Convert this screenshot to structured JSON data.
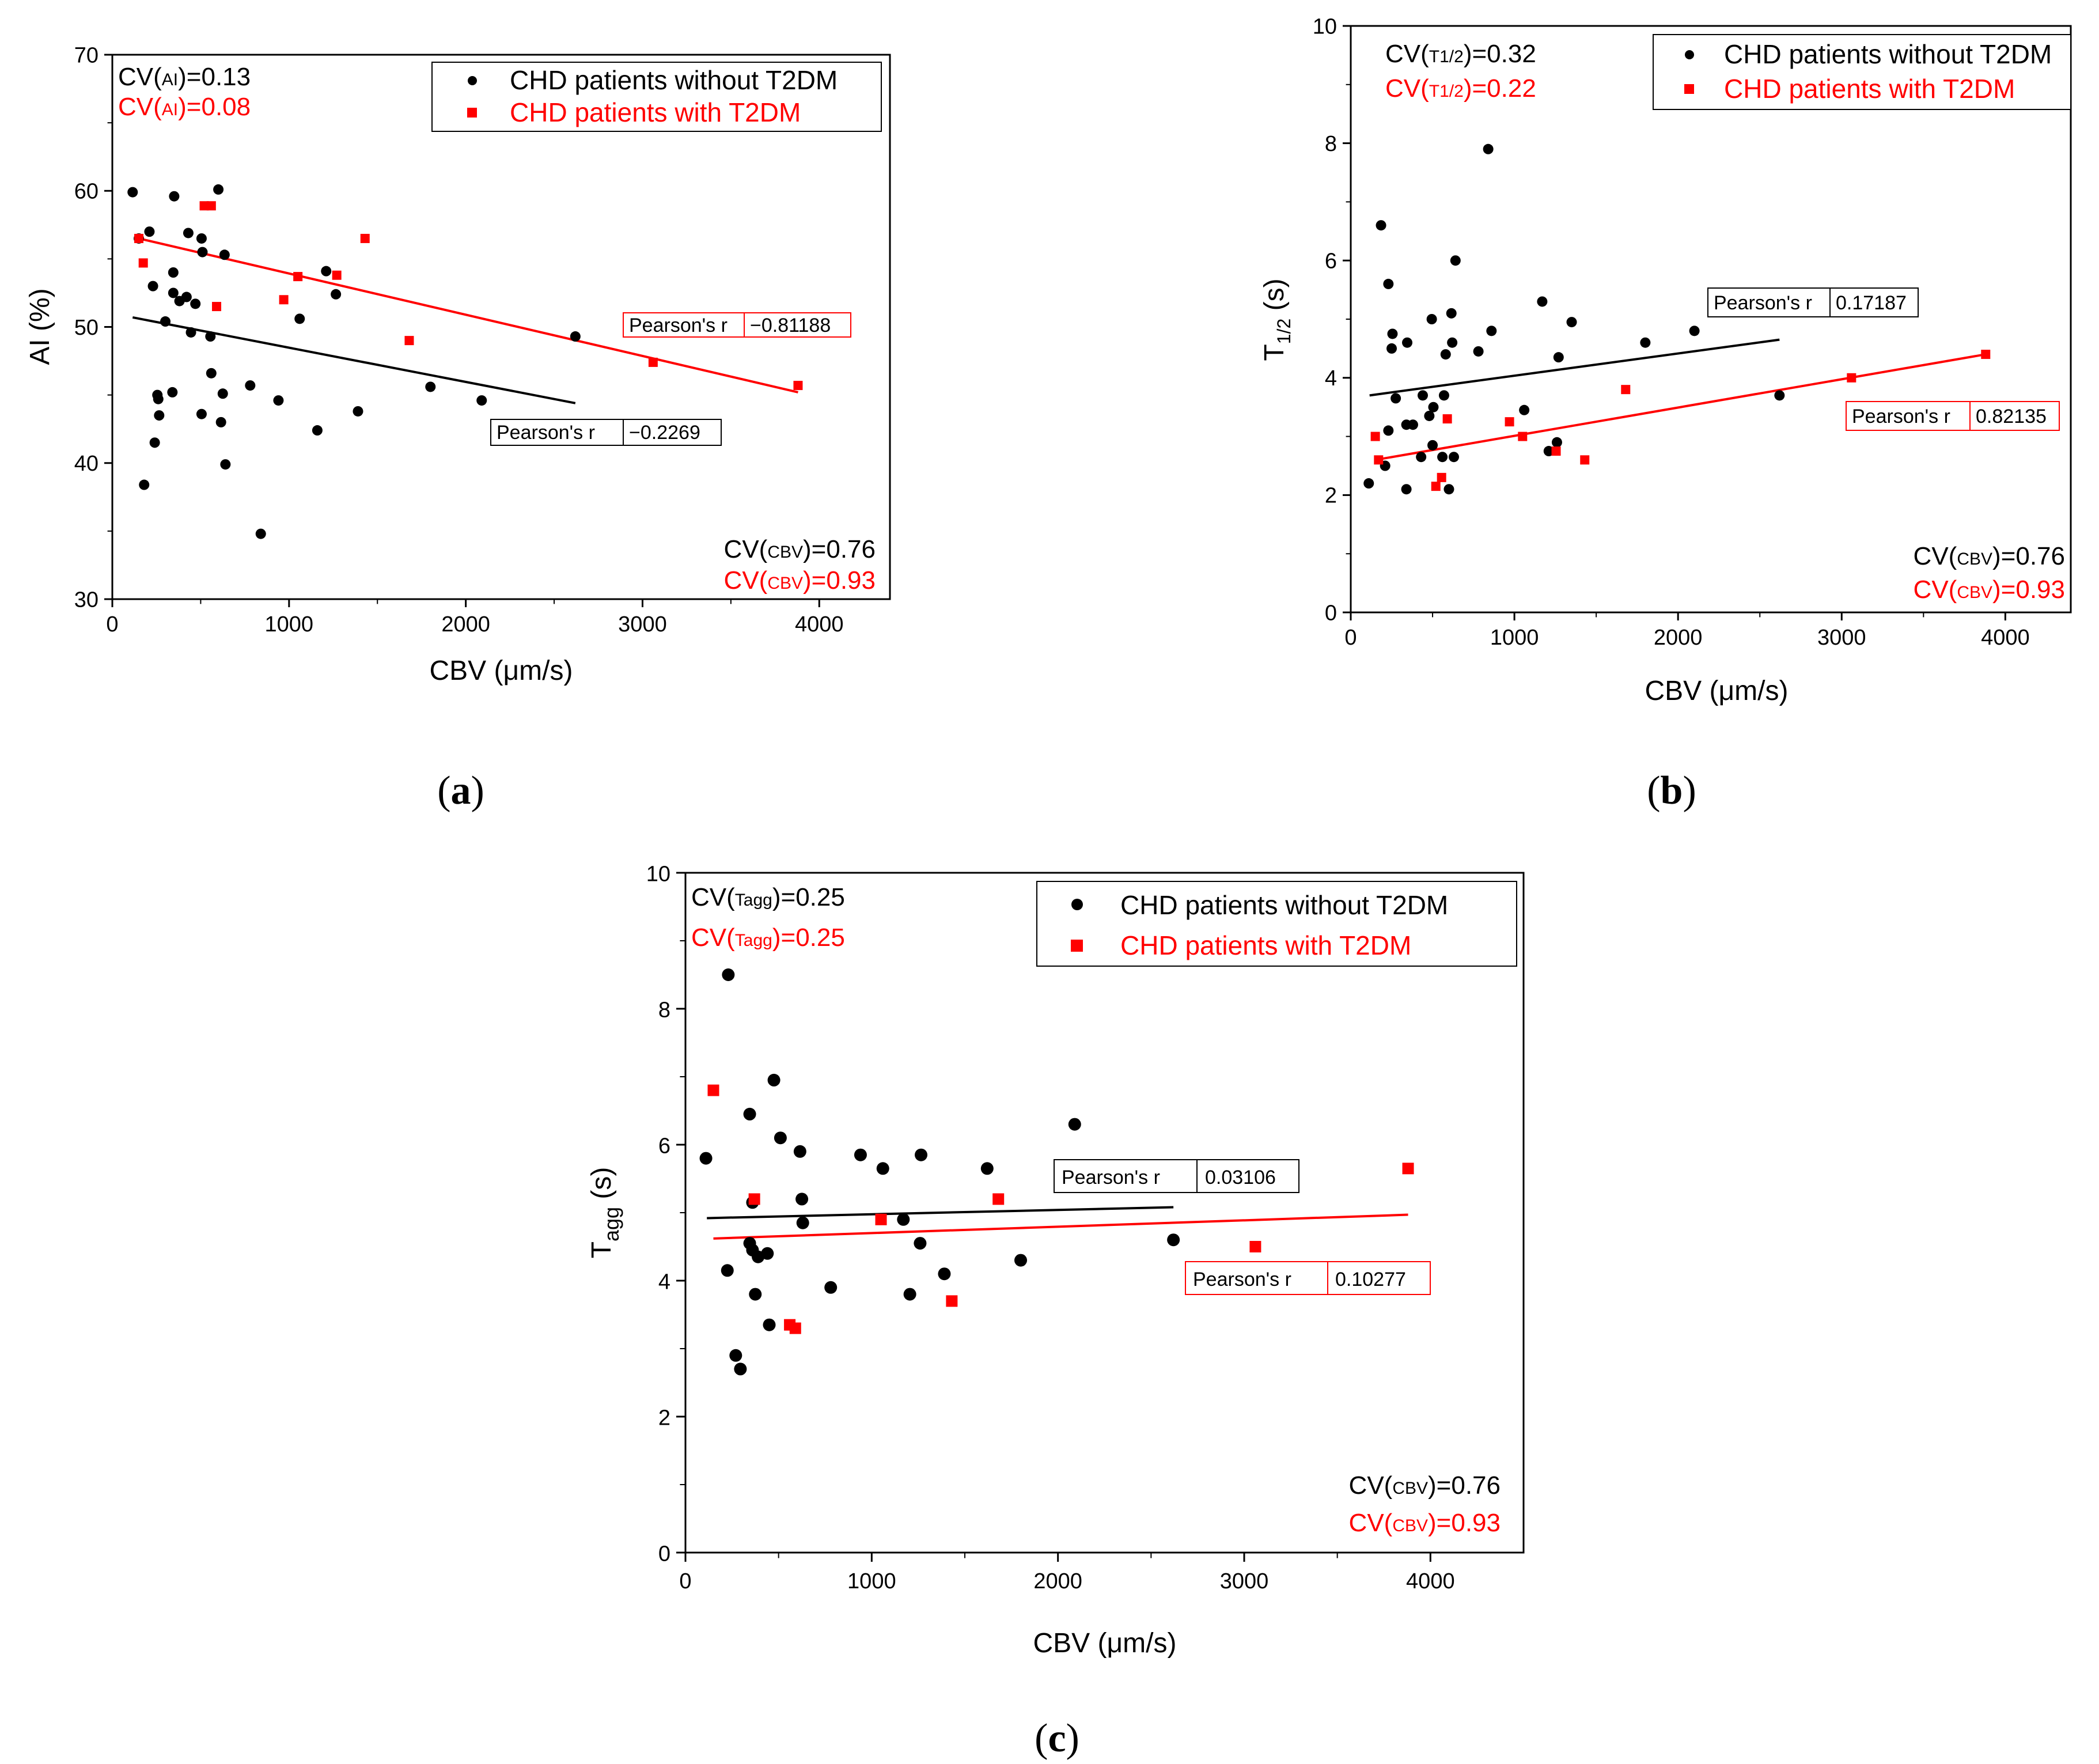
{
  "colors": {
    "black_series": "#000000",
    "red_series": "#ff0000"
  },
  "chart_data": [
    {
      "id": "a",
      "type": "scatter",
      "caption": "a",
      "xlabel": "CBV (μm/s)",
      "ylabel": "AI (%)",
      "xlim": [
        0,
        4400
      ],
      "ylim": [
        30,
        70
      ],
      "xticks": [
        0,
        1000,
        2000,
        3000,
        4000
      ],
      "yticks": [
        30,
        40,
        50,
        60,
        70
      ],
      "xtick_labels": [
        "0",
        "1000",
        "2000",
        "3000",
        "4000"
      ],
      "ytick_labels": [
        "30",
        "40",
        "50",
        "60",
        "70"
      ],
      "legend": [
        "CHD patients without T2DM",
        "CHD patients with T2DM"
      ],
      "cv_y": {
        "black": {
          "prefix": "CV(",
          "sub": "AI",
          "suffix": ")=0.13"
        },
        "red": {
          "prefix": "CV(",
          "sub": "AI",
          "suffix": ")=0.08"
        }
      },
      "cv_x": {
        "black": {
          "prefix": "CV(",
          "sub": "CBV",
          "suffix": ")=0.76"
        },
        "red": {
          "prefix": "CV(",
          "sub": "CBV",
          "suffix": ")=0.93"
        }
      },
      "series": [
        {
          "name": "CHD patients without T2DM",
          "color": "#000000",
          "marker": "circle",
          "x": [
            115,
            210,
            150,
            350,
            600,
            230,
            345,
            505,
            430,
            635,
            510,
            345,
            380,
            420,
            470,
            560,
            300,
            445,
            555,
            1060,
            1210,
            1265,
            2620,
            255,
            340,
            625,
            260,
            265,
            615,
            505,
            780,
            940,
            1160,
            1390,
            1800,
            2090,
            240,
            640,
            180,
            840
          ],
          "y": [
            59.9,
            57.0,
            56.5,
            59.6,
            60.1,
            53.0,
            54.0,
            56.5,
            56.9,
            55.3,
            55.5,
            52.5,
            51.9,
            52.2,
            51.7,
            46.6,
            50.4,
            49.6,
            49.3,
            50.6,
            54.1,
            52.4,
            49.3,
            45.0,
            45.2,
            45.1,
            44.7,
            43.5,
            43.0,
            43.6,
            45.7,
            44.6,
            42.4,
            43.8,
            45.6,
            44.6,
            41.5,
            39.9,
            38.4,
            34.8
          ]
        },
        {
          "name": "CHD patients with T2DM",
          "color": "#ff0000",
          "marker": "square",
          "x": [
            150,
            175,
            520,
            560,
            590,
            970,
            1050,
            1270,
            1430,
            1680,
            3060,
            3880
          ],
          "y": [
            56.5,
            54.7,
            58.9,
            58.9,
            51.5,
            52.0,
            53.7,
            53.8,
            56.5,
            49.0,
            47.4,
            45.7
          ]
        }
      ],
      "fits": [
        {
          "color": "#000000",
          "x": [
            115,
            2620
          ],
          "y": [
            50.7,
            44.4
          ],
          "pearson_label": "Pearson's r",
          "pearson_value": "−0.2269"
        },
        {
          "color": "#ff0000",
          "x": [
            150,
            3880
          ],
          "y": [
            56.5,
            45.2
          ],
          "pearson_label": "Pearson's r",
          "pearson_value": "−0.81188"
        }
      ]
    },
    {
      "id": "b",
      "type": "scatter",
      "caption": "b",
      "xlabel": "CBV (μm/s)",
      "ylabel": "T",
      "ylabel_sub": "1/2",
      "ylabel_suffix": " (s)",
      "xlim": [
        0,
        4400
      ],
      "ylim": [
        0,
        10
      ],
      "xticks": [
        0,
        1000,
        2000,
        3000,
        4000
      ],
      "yticks": [
        0,
        2,
        4,
        6,
        8,
        10
      ],
      "xtick_labels": [
        "0",
        "1000",
        "2000",
        "3000",
        "4000"
      ],
      "ytick_labels": [
        "0",
        "2",
        "4",
        "6",
        "8",
        "10"
      ],
      "legend": [
        "CHD patients without T2DM",
        "CHD patients with T2DM"
      ],
      "cv_y": {
        "black": {
          "prefix": "CV(",
          "sub": "T1/2",
          "suffix": ")=0.32"
        },
        "red": {
          "prefix": "CV(",
          "sub": "T1/2",
          "suffix": ")=0.22"
        }
      },
      "cv_x": {
        "black": {
          "prefix": "CV(",
          "sub": "CBV",
          "suffix": ")=0.76"
        },
        "red": {
          "prefix": "CV(",
          "sub": "CBV",
          "suffix": ")=0.93"
        }
      },
      "series": [
        {
          "name": "CHD patients without T2DM",
          "color": "#000000",
          "marker": "circle",
          "x": [
            840,
            185,
            640,
            230,
            495,
            615,
            860,
            1170,
            1350,
            255,
            345,
            250,
            620,
            580,
            780,
            1800,
            2100,
            1270,
            2620,
            275,
            440,
            505,
            570,
            380,
            340,
            1060,
            230,
            480,
            430,
            500,
            560,
            630,
            1210,
            1260,
            110,
            210,
            340,
            600
          ],
          "y": [
            7.9,
            6.6,
            6.0,
            5.6,
            5.0,
            5.1,
            4.8,
            5.3,
            4.95,
            4.75,
            4.6,
            4.5,
            4.6,
            4.4,
            4.45,
            4.6,
            4.8,
            4.35,
            3.7,
            3.65,
            3.7,
            3.5,
            3.7,
            3.2,
            3.2,
            3.45,
            3.1,
            3.35,
            2.65,
            2.85,
            2.65,
            2.65,
            2.75,
            2.9,
            2.2,
            2.5,
            2.1,
            2.1
          ]
        },
        {
          "name": "CHD patients with T2DM",
          "color": "#ff0000",
          "marker": "square",
          "x": [
            150,
            170,
            520,
            555,
            590,
            970,
            1050,
            1255,
            1430,
            1680,
            3060,
            3880
          ],
          "y": [
            3.0,
            2.6,
            2.15,
            2.3,
            3.3,
            3.25,
            3.0,
            2.75,
            2.6,
            3.8,
            4.0,
            4.4
          ]
        }
      ],
      "fits": [
        {
          "color": "#000000",
          "x": [
            115,
            2620
          ],
          "y": [
            3.7,
            4.65
          ],
          "pearson_label": "Pearson's r",
          "pearson_value": "0.17187"
        },
        {
          "color": "#ff0000",
          "x": [
            150,
            3880
          ],
          "y": [
            2.6,
            4.4
          ],
          "pearson_label": "Pearson's r",
          "pearson_value": "0.82135"
        }
      ]
    },
    {
      "id": "c",
      "type": "scatter",
      "caption": "c",
      "xlabel": "CBV (μm/s)",
      "ylabel": "T",
      "ylabel_sub": "agg",
      "ylabel_suffix": " (s)",
      "xlim": [
        0,
        4500
      ],
      "ylim": [
        0,
        10
      ],
      "xticks": [
        0,
        1000,
        2000,
        3000,
        4000
      ],
      "yticks": [
        0,
        2,
        4,
        6,
        8,
        10
      ],
      "xtick_labels": [
        "0",
        "1000",
        "2000",
        "3000",
        "4000"
      ],
      "ytick_labels": [
        "0",
        "2",
        "4",
        "6",
        "8",
        "10"
      ],
      "legend": [
        "CHD patients without T2DM",
        "CHD patients with T2DM"
      ],
      "cv_y": {
        "black": {
          "prefix": "CV(",
          "sub": "Tagg",
          "suffix": ")=0.25"
        },
        "red": {
          "prefix": "CV(",
          "sub": "Tagg",
          "suffix": ")=0.25"
        }
      },
      "cv_x": {
        "black": {
          "prefix": "CV(",
          "sub": "CBV",
          "suffix": ")=0.76"
        },
        "red": {
          "prefix": "CV(",
          "sub": "CBV",
          "suffix": ")=0.93"
        }
      },
      "series": [
        {
          "name": "CHD patients without T2DM",
          "color": "#000000",
          "marker": "circle",
          "x": [
            230,
            475,
            345,
            510,
            615,
            940,
            1060,
            1265,
            1620,
            2090,
            110,
            360,
            625,
            630,
            1170,
            2620,
            345,
            360,
            390,
            440,
            225,
            375,
            780,
            1205,
            1390,
            1800,
            450,
            270,
            295,
            1260
          ],
          "y": [
            8.5,
            6.95,
            6.45,
            6.1,
            5.9,
            5.85,
            5.65,
            5.85,
            5.65,
            6.3,
            5.8,
            5.15,
            5.2,
            4.85,
            4.9,
            4.6,
            4.55,
            4.45,
            4.35,
            4.4,
            4.15,
            3.8,
            3.9,
            3.8,
            4.1,
            4.3,
            3.35,
            2.9,
            2.7,
            4.55
          ]
        },
        {
          "name": "CHD patients with T2DM",
          "color": "#ff0000",
          "marker": "square",
          "x": [
            150,
            370,
            560,
            590,
            1050,
            1430,
            1680,
            3060,
            3880
          ],
          "y": [
            6.8,
            5.2,
            3.35,
            3.3,
            4.9,
            3.7,
            5.2,
            4.5,
            5.65
          ]
        }
      ],
      "fits": [
        {
          "color": "#000000",
          "x": [
            115,
            2620
          ],
          "y": [
            4.92,
            5.08
          ],
          "pearson_label": "Pearson's r",
          "pearson_value": "0.03106"
        },
        {
          "color": "#ff0000",
          "x": [
            150,
            3880
          ],
          "y": [
            4.62,
            4.97
          ],
          "pearson_label": "Pearson's r",
          "pearson_value": "0.10277"
        }
      ]
    }
  ]
}
